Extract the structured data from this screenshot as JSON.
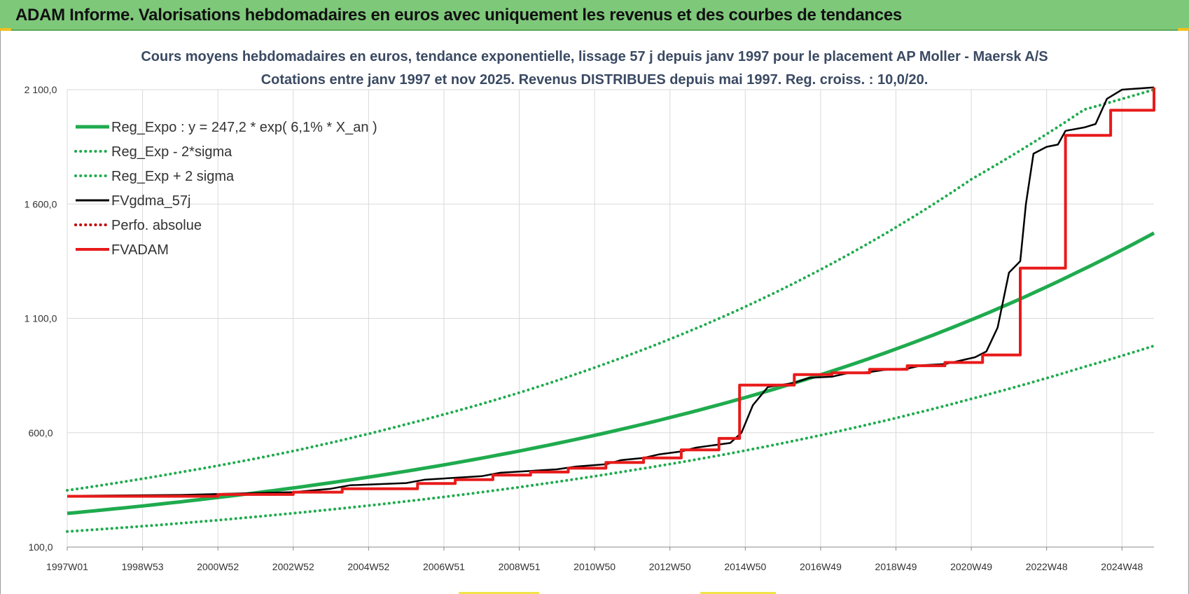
{
  "header": {
    "title": "ADAM Informe. Valorisations hebdomadaires en euros avec uniquement les revenus et des courbes de tendances"
  },
  "colors": {
    "header_bg": "#7ec87a",
    "green": "#1fab4e",
    "black": "#000000",
    "red": "#e81a1a",
    "dark_red": "#c00000",
    "grid": "#d9d9d9",
    "title": "#3b4a63"
  },
  "chart_data": {
    "type": "line",
    "title": "Cours moyens hebdomadaires en euros, tendance exponentielle, lissage 57 j depuis janv 1997 pour le placement AP Moller - Maersk A/S",
    "subtitle": "Cotations entre janv 1997 et nov 2025. Revenus DISTRIBUES depuis mai 1997. Reg. croiss. : 10,0/20.",
    "x_range": [
      1997.0,
      2025.85
    ],
    "ylim": [
      100,
      2100
    ],
    "y_ticks": [
      100,
      600,
      1100,
      1600,
      2100
    ],
    "y_tick_labels": [
      "100,0",
      "600,0",
      "1 100,0",
      "1 600,0",
      "2 100,0"
    ],
    "x_ticks": [
      1997.0,
      1999.0,
      2001.0,
      2003.0,
      2005.0,
      2007.0,
      2009.0,
      2011.0,
      2013.0,
      2015.0,
      2017.0,
      2019.0,
      2021.0,
      2023.0,
      2025.0
    ],
    "x_tick_labels": [
      "1997W01",
      "1998W53",
      "2000W52",
      "2002W52",
      "2004W52",
      "2006W51",
      "2008W51",
      "2010W50",
      "2012W50",
      "2014W50",
      "2016W49",
      "2018W49",
      "2020W49",
      "2022W48",
      "2024W48"
    ],
    "grid": true,
    "legend_position": "top-left",
    "series": [
      {
        "name": "Reg_Expo : y = 247,2 * exp( 6,1% *  X_an )",
        "style": "solid",
        "color": "#1fab4e",
        "x": [
          1997.0,
          2000.0,
          2003.0,
          2006.0,
          2009.0,
          2012.0,
          2015.0,
          2018.0,
          2021.0,
          2024.0,
          2025.85
        ],
        "values": [
          247.2,
          297.7,
          358.5,
          431.8,
          520.0,
          626.2,
          754.0,
          908.0,
          1093.5,
          1316.8,
          1473.0
        ]
      },
      {
        "name": "Reg_Exp - 2*sigma",
        "style": "dotted",
        "color": "#1fab4e",
        "x": [
          1997.0,
          2000.0,
          2003.0,
          2006.0,
          2009.0,
          2012.0,
          2015.0,
          2018.0,
          2021.0,
          2024.0,
          2025.85
        ],
        "values": [
          168,
          204,
          248,
          300,
          362,
          436,
          522,
          626,
          748,
          888,
          980
        ]
      },
      {
        "name": "Reg_Exp + 2 sigma",
        "style": "dotted",
        "color": "#1fab4e",
        "x": [
          1997.0,
          2000.0,
          2003.0,
          2006.0,
          2009.0,
          2012.0,
          2015.0,
          2018.0,
          2021.0,
          2024.0,
          2025.85
        ],
        "values": [
          348,
          427,
          520,
          637,
          775,
          945,
          1151,
          1403,
          1708,
          2013,
          2100
        ]
      },
      {
        "name": "FVgdma_57j",
        "style": "solid",
        "color": "#000000",
        "x": [
          1997.0,
          2000.0,
          2003.0,
          2004.0,
          2004.5,
          2006.0,
          2006.5,
          2008.0,
          2008.5,
          2010.0,
          2010.5,
          2011.3,
          2011.7,
          2012.3,
          2012.7,
          2013.3,
          2013.7,
          2014.6,
          2014.9,
          2015.2,
          2015.6,
          2016.3,
          2016.7,
          2017.3,
          2017.7,
          2018.3,
          2018.7,
          2019.3,
          2019.7,
          2020.3,
          2020.7,
          2021.1,
          2021.4,
          2021.7,
          2022.0,
          2022.3,
          2022.45,
          2022.65,
          2023.0,
          2023.3,
          2023.5,
          2024.0,
          2024.3,
          2024.6,
          2025.0,
          2025.85
        ],
        "values": [
          324,
          328,
          340,
          355,
          370,
          380,
          395,
          410,
          425,
          440,
          452,
          462,
          480,
          490,
          505,
          518,
          535,
          555,
          600,
          720,
          800,
          818,
          840,
          845,
          860,
          865,
          875,
          880,
          895,
          900,
          915,
          930,
          955,
          1060,
          1300,
          1350,
          1600,
          1820,
          1850,
          1860,
          1920,
          1935,
          1950,
          2060,
          2100,
          2110
        ]
      },
      {
        "name": "Perfo. absolue",
        "style": "dotted",
        "color": "#c00000",
        "x": [],
        "values": []
      },
      {
        "name": "FVADAM",
        "style": "step",
        "color": "#e81a1a",
        "x": [
          1997.0,
          2001.0,
          2003.0,
          2004.3,
          2006.3,
          2007.3,
          2008.3,
          2009.3,
          2010.3,
          2011.3,
          2012.3,
          2013.3,
          2014.3,
          2014.85,
          2016.3,
          2017.3,
          2018.3,
          2019.3,
          2020.3,
          2021.3,
          2022.3,
          2023.5,
          2024.7,
          2025.85
        ],
        "values": [
          322,
          330,
          340,
          355,
          378,
          395,
          415,
          428,
          445,
          470,
          490,
          525,
          575,
          808,
          854,
          862,
          877,
          893,
          907,
          940,
          1320,
          1900,
          2010,
          2110
        ]
      }
    ]
  }
}
